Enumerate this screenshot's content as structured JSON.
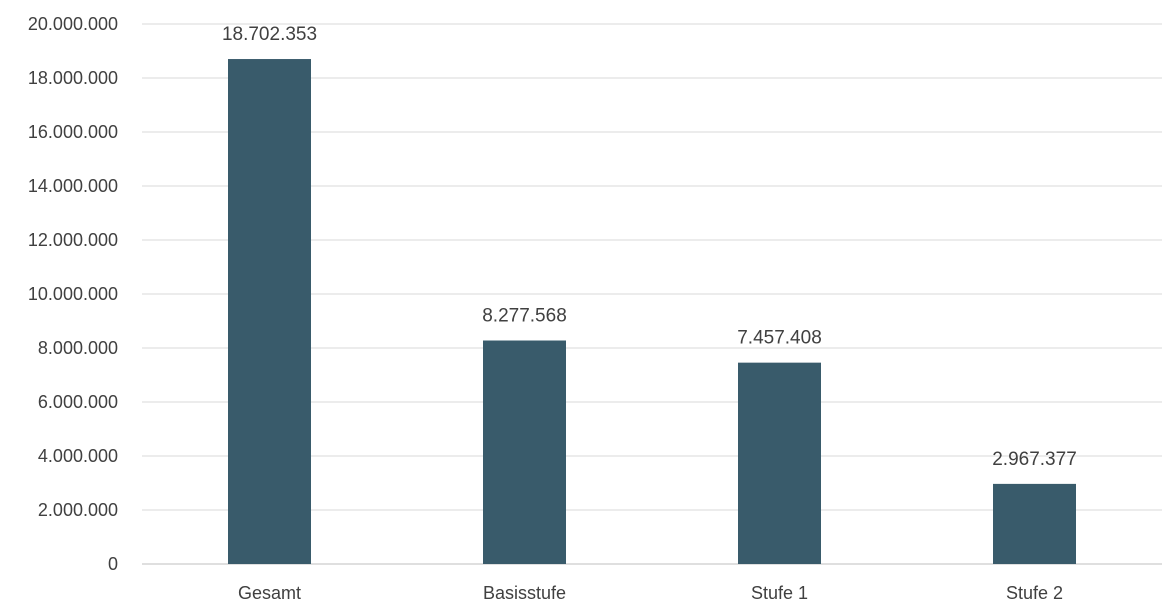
{
  "chart_data": {
    "type": "bar",
    "title": "",
    "xlabel": "",
    "ylabel": "",
    "categories": [
      "Gesamt",
      "Basisstufe",
      "Stufe 1",
      "Stufe 2"
    ],
    "values": [
      18702353,
      8277568,
      7457408,
      2967377
    ],
    "data_labels": [
      "18.702.353",
      "8.277.568",
      "7.457.408",
      "2.967.377"
    ],
    "ylim": [
      0,
      20000000
    ],
    "y_ticks": [
      0,
      2000000,
      4000000,
      6000000,
      8000000,
      10000000,
      12000000,
      14000000,
      16000000,
      18000000,
      20000000
    ],
    "y_tick_labels": [
      "0",
      "2.000.000",
      "4.000.000",
      "6.000.000",
      "8.000.000",
      "10.000.000",
      "12.000.000",
      "14.000.000",
      "16.000.000",
      "18.000.000",
      "20.000.000"
    ],
    "grid": true,
    "legend": "none",
    "bar_color": "#395b6b"
  }
}
